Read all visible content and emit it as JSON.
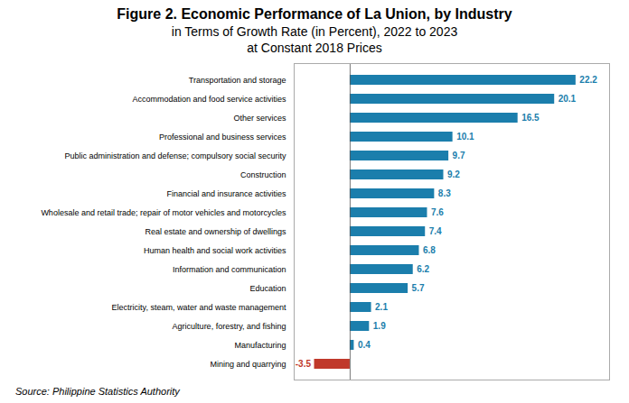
{
  "chart_data": {
    "type": "bar",
    "orientation": "horizontal",
    "title": "Figure 2. Economic Performance of La Union, by Industry",
    "subtitle": [
      "in Terms of Growth Rate (in Percent), 2022 to 2023",
      "at Constant 2018 Prices"
    ],
    "caption": "Source: Philippine Statistics Authority",
    "categories": [
      "Transportation and storage",
      "Accommodation and food service activities",
      "Other services",
      "Professional and business services",
      "Public administration and defense; compulsory social security",
      "Construction",
      "Financial and insurance activities",
      "Wholesale and retail trade; repair of motor vehicles and motorcycles",
      "Real estate and ownership of dwellings",
      "Human health and social work activities",
      "Information and communication",
      "Education",
      "Electricity, steam, water and waste management",
      "Agriculture, forestry, and fishing",
      "Manufacturing",
      "Mining and quarrying"
    ],
    "values": [
      22.2,
      20.1,
      16.5,
      10.1,
      9.7,
      9.2,
      8.3,
      7.6,
      7.4,
      6.8,
      6.2,
      5.7,
      2.1,
      1.9,
      0.4,
      -3.5
    ],
    "colors": [
      "#1b7eac",
      "#1b7eac",
      "#1b7eac",
      "#1b7eac",
      "#1b7eac",
      "#1b7eac",
      "#1b7eac",
      "#1b7eac",
      "#1b7eac",
      "#1b7eac",
      "#1b7eac",
      "#1b7eac",
      "#1b7eac",
      "#1b7eac",
      "#1b7eac",
      "#c0392b"
    ],
    "xlim": [
      -5.5,
      25.5
    ],
    "xticks": [],
    "tick_labels": "y",
    "data_labels": true,
    "grid": false
  }
}
